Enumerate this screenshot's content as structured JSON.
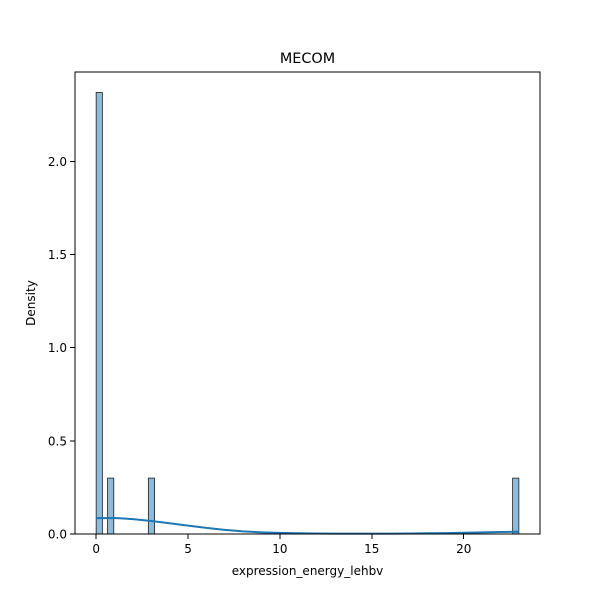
{
  "chart_data": {
    "type": "bar",
    "title": "MECOM",
    "xlabel": "expression_energy_lehbv",
    "ylabel": "Density",
    "xlim": [
      -1.15,
      24.15
    ],
    "ylim": [
      0,
      2.48
    ],
    "xticks": [
      0,
      5,
      10,
      15,
      20
    ],
    "yticks": [
      0.0,
      0.5,
      1.0,
      1.5,
      2.0
    ],
    "xtick_labels": [
      "0",
      "5",
      "10",
      "15",
      "20"
    ],
    "ytick_labels": [
      "0.0",
      "0.5",
      "1.0",
      "1.5",
      "2.0"
    ],
    "bins": [
      {
        "x0": 0.0,
        "x1": 0.34,
        "density": 2.37
      },
      {
        "x0": 0.62,
        "x1": 0.96,
        "density": 0.3
      },
      {
        "x0": 2.84,
        "x1": 3.18,
        "density": 0.3
      },
      {
        "x0": 22.66,
        "x1": 23.0,
        "density": 0.3
      }
    ],
    "kde": {
      "x": [
        0,
        1,
        2,
        3,
        4,
        5,
        6,
        7,
        8,
        9,
        10,
        11,
        12,
        13,
        14,
        15,
        16,
        17,
        18,
        19,
        20,
        21,
        22,
        23
      ],
      "y": [
        0.085,
        0.086,
        0.08,
        0.07,
        0.058,
        0.045,
        0.033,
        0.022,
        0.014,
        0.009,
        0.006,
        0.004,
        0.003,
        0.002,
        0.002,
        0.002,
        0.002,
        0.003,
        0.004,
        0.005,
        0.007,
        0.009,
        0.011,
        0.012
      ]
    },
    "grid": false,
    "colors": {
      "bar_fill": "#1f77b4",
      "bar_edge": "#1f1f1f",
      "kde_line": "#1f77b4"
    }
  }
}
